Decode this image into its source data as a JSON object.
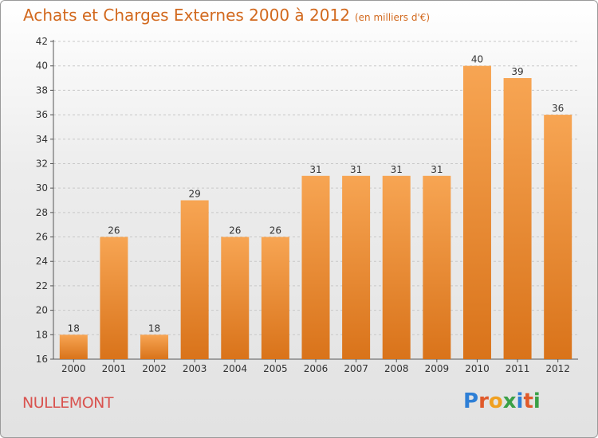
{
  "header": {
    "title": "Achats et Charges Externes 2000 à 2012",
    "subtitle": "(en milliers d'€)"
  },
  "commune": "NULLEMONT",
  "logo": {
    "text": "Proxiti",
    "colors": [
      "#2e7fd6",
      "#e05a2b",
      "#f0a020",
      "#3aa047",
      "#2e7fd6",
      "#e05a2b",
      "#3aa047"
    ]
  },
  "colors": {
    "bar_top": "#f7a553",
    "bar_bottom": "#d9731a",
    "title": "#d2691e",
    "commune": "#d9534f"
  },
  "chart_data": {
    "type": "bar",
    "title": "Achats et Charges Externes 2000 à 2012",
    "categories": [
      "2000",
      "2001",
      "2002",
      "2003",
      "2004",
      "2005",
      "2006",
      "2007",
      "2008",
      "2009",
      "2010",
      "2011",
      "2012"
    ],
    "values": [
      18,
      26,
      18,
      29,
      26,
      26,
      31,
      31,
      31,
      31,
      40,
      39,
      36
    ],
    "data_labels": [
      "18",
      "26",
      "18",
      "29",
      "26",
      "26",
      "31",
      "31",
      "31",
      "31",
      "40",
      "39",
      "36"
    ],
    "ylim": [
      16,
      42
    ],
    "yticks": [
      16,
      18,
      20,
      22,
      24,
      26,
      28,
      30,
      32,
      34,
      36,
      38,
      40,
      42
    ],
    "ytick_labels": [
      "16",
      "18",
      "20",
      "22",
      "24",
      "26",
      "28",
      "30",
      "32",
      "34",
      "36",
      "38",
      "40",
      "42"
    ],
    "grid": true,
    "grid_axis": "y",
    "grid_style": "dashed",
    "xlabel": "",
    "ylabel": ""
  }
}
